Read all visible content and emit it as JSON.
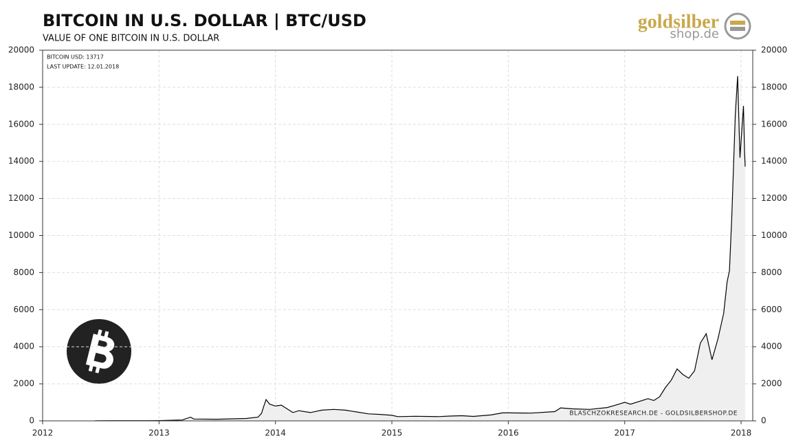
{
  "chart_data": {
    "type": "area",
    "title": "BITCOIN  IN  U.S. DOLLAR  | BTC/USD",
    "subtitle": "VALUE OF ONE BITCOIN IN U.S. DOLLAR",
    "annotations": [
      "BITCOIN USD: 13717",
      "LAST UPDATE: 12.01.2018"
    ],
    "source": "BLASCHZOKRESEARCH.DE  -  GOLDSILBERSHOP.DE",
    "logo": [
      "goldsilber",
      "shop.de"
    ],
    "x": [
      2012.45,
      2012.6,
      2012.9,
      2013.0,
      2013.2,
      2013.27,
      2013.3,
      2013.5,
      2013.75,
      2013.85,
      2013.88,
      2013.9,
      2013.92,
      2013.95,
      2014.0,
      2014.05,
      2014.1,
      2014.15,
      2014.2,
      2014.3,
      2014.4,
      2014.5,
      2014.6,
      2014.7,
      2014.8,
      2014.9,
      2015.0,
      2015.05,
      2015.2,
      2015.4,
      2015.5,
      2015.6,
      2015.7,
      2015.85,
      2015.95,
      2016.0,
      2016.2,
      2016.4,
      2016.45,
      2016.55,
      2016.7,
      2016.85,
      2016.95,
      2017.0,
      2017.05,
      2017.15,
      2017.2,
      2017.25,
      2017.3,
      2017.35,
      2017.4,
      2017.45,
      2017.5,
      2017.55,
      2017.6,
      2017.65,
      2017.7,
      2017.75,
      2017.8,
      2017.85,
      2017.88,
      2017.9,
      2017.92,
      2017.95,
      2017.97,
      2017.99,
      2018.02,
      2018.03,
      2018.035
    ],
    "series": [
      {
        "name": "BITCOIN USD",
        "color": "#000000",
        "fill": "#efefef",
        "values": [
          6,
          10,
          12,
          13,
          50,
          200,
          100,
          90,
          130,
          200,
          400,
          800,
          1150,
          900,
          800,
          850,
          650,
          450,
          550,
          450,
          580,
          620,
          580,
          480,
          380,
          350,
          300,
          230,
          250,
          230,
          260,
          280,
          240,
          320,
          430,
          430,
          420,
          500,
          700,
          650,
          620,
          720,
          900,
          1000,
          900,
          1100,
          1200,
          1100,
          1300,
          1800,
          2200,
          2800,
          2500,
          2300,
          2700,
          4200,
          4700,
          3300,
          4400,
          5800,
          7500,
          8100,
          11000,
          16500,
          18600,
          14200,
          17000,
          14500,
          13717
        ]
      }
    ],
    "xlim": [
      2012,
      2018.1
    ],
    "xticks": [
      2012,
      2013,
      2014,
      2015,
      2016,
      2017,
      2018
    ],
    "ylim": [
      0,
      20000
    ],
    "yticks": [
      0,
      2000,
      4000,
      6000,
      8000,
      10000,
      12000,
      14000,
      16000,
      18000,
      20000
    ],
    "grid": true
  }
}
